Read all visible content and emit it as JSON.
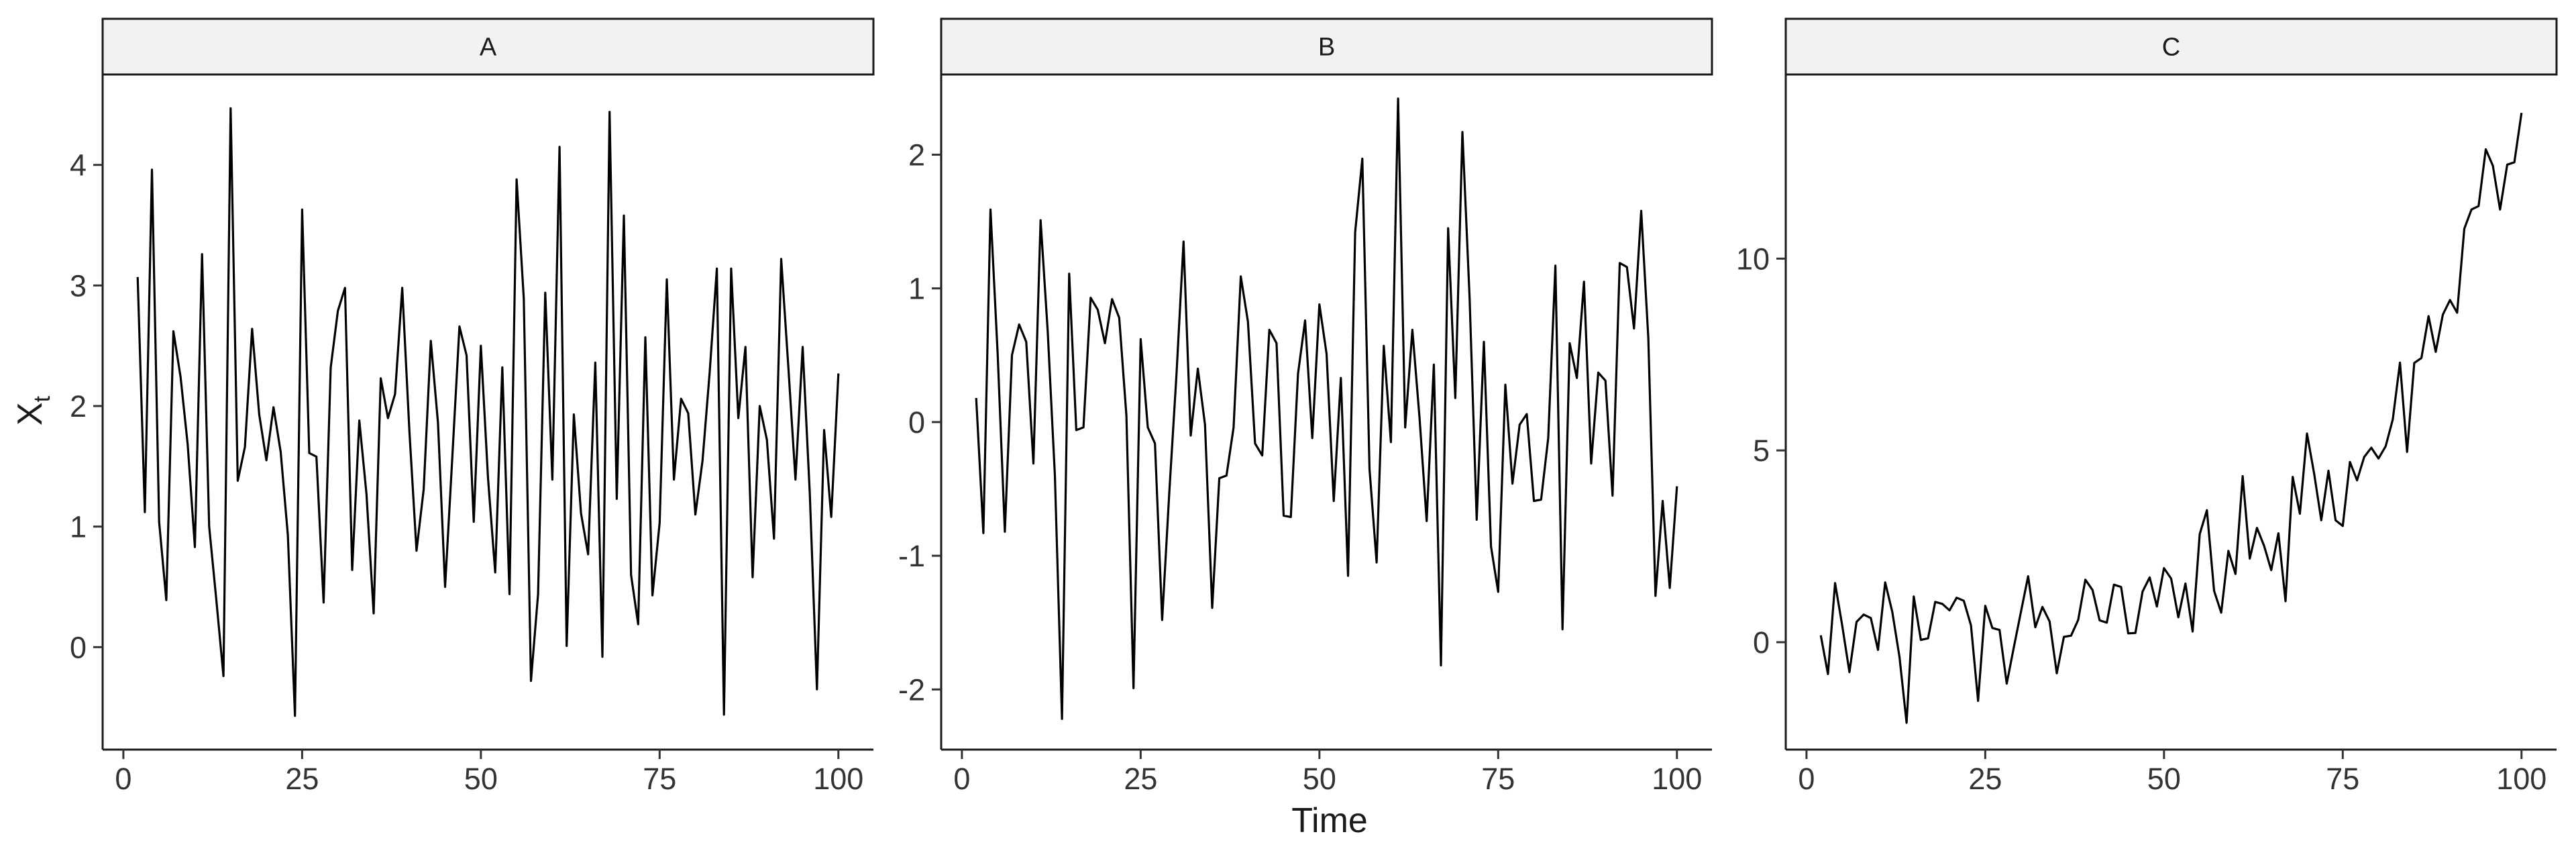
{
  "chart_data": {
    "type": "line",
    "layout": "facet",
    "xlabel": "Time",
    "ylabel_main": "X",
    "ylabel_sub": "t",
    "line_color": "#000000",
    "strip_fill": "#f2f2f2",
    "panels": [
      {
        "name": "A",
        "xlim": [
          -2.9,
          104.9
        ],
        "ylim": [
          -0.85,
          4.75
        ],
        "xticks": [
          0,
          25,
          50,
          75,
          100
        ],
        "yticks": [
          0,
          1,
          2,
          3,
          4
        ],
        "ytick_labels": [
          "0",
          "1",
          "2",
          "3",
          "4"
        ],
        "x": [
          2,
          3,
          4,
          5,
          6,
          7,
          8,
          9,
          10,
          11,
          12,
          13,
          14,
          15,
          16,
          17,
          18,
          19,
          20,
          21,
          22,
          23,
          24,
          25,
          26,
          27,
          28,
          29,
          30,
          31,
          32,
          33,
          34,
          35,
          36,
          37,
          38,
          39,
          40,
          41,
          42,
          43,
          44,
          45,
          46,
          47,
          48,
          49,
          50,
          51,
          52,
          53,
          54,
          55,
          56,
          57,
          58,
          59,
          60,
          61,
          62,
          63,
          64,
          65,
          66,
          67,
          68,
          69,
          70,
          71,
          72,
          73,
          74,
          75,
          76,
          77,
          78,
          79,
          80,
          81,
          82,
          83,
          84,
          85,
          86,
          87,
          88,
          89,
          90,
          91,
          92,
          93,
          94,
          95,
          96,
          97,
          98,
          99,
          100
        ],
        "y": [
          3.07,
          1.12,
          3.96,
          1.04,
          0.39,
          2.62,
          2.24,
          1.68,
          0.83,
          3.26,
          1.0,
          0.39,
          -0.24,
          4.47,
          1.38,
          1.66,
          2.64,
          1.93,
          1.55,
          1.99,
          1.62,
          0.93,
          -0.57,
          3.63,
          1.61,
          1.58,
          0.37,
          2.32,
          2.79,
          2.98,
          0.64,
          1.88,
          1.27,
          0.28,
          2.23,
          1.9,
          2.1,
          2.98,
          1.79,
          0.8,
          1.31,
          2.54,
          1.86,
          0.5,
          1.57,
          2.66,
          2.42,
          1.04,
          2.5,
          1.4,
          0.62,
          2.32,
          0.44,
          3.88,
          2.89,
          -0.28,
          0.44,
          2.94,
          1.39,
          4.15,
          0.01,
          1.93,
          1.11,
          0.77,
          2.36,
          -0.08,
          4.44,
          1.23,
          3.58,
          0.6,
          0.19,
          2.57,
          0.43,
          1.03,
          3.05,
          1.39,
          2.06,
          1.94,
          1.1,
          1.55,
          2.28,
          3.14,
          -0.56,
          3.14,
          1.9,
          2.49,
          0.58,
          2.0,
          1.72,
          0.9,
          3.22,
          2.32,
          1.39,
          2.49,
          1.28,
          -0.35,
          1.8,
          1.08,
          2.27
        ]
      },
      {
        "name": "B",
        "xlim": [
          -2.9,
          104.9
        ],
        "ylim": [
          -2.45,
          2.6
        ],
        "xticks": [
          0,
          25,
          50,
          75,
          100
        ],
        "yticks": [
          -2,
          -1,
          0,
          1,
          2
        ],
        "ytick_labels": [
          "-2",
          "-1",
          "0",
          "1",
          "2"
        ],
        "x": [
          2,
          3,
          4,
          5,
          6,
          7,
          8,
          9,
          10,
          11,
          12,
          13,
          14,
          15,
          16,
          17,
          18,
          19,
          20,
          21,
          22,
          23,
          24,
          25,
          26,
          27,
          28,
          29,
          30,
          31,
          32,
          33,
          34,
          35,
          36,
          37,
          38,
          39,
          40,
          41,
          42,
          43,
          44,
          45,
          46,
          47,
          48,
          49,
          50,
          51,
          52,
          53,
          54,
          55,
          56,
          57,
          58,
          59,
          60,
          61,
          62,
          63,
          64,
          65,
          66,
          67,
          68,
          69,
          70,
          71,
          72,
          73,
          74,
          75,
          76,
          77,
          78,
          79,
          80,
          81,
          82,
          83,
          84,
          85,
          86,
          87,
          88,
          89,
          90,
          91,
          92,
          93,
          94,
          95,
          96,
          97,
          98,
          99,
          100
        ],
        "y": [
          0.18,
          -0.83,
          1.59,
          0.51,
          -0.82,
          0.5,
          0.73,
          0.6,
          -0.31,
          1.51,
          0.68,
          -0.4,
          -2.22,
          1.11,
          -0.06,
          -0.04,
          0.93,
          0.84,
          0.59,
          0.92,
          0.78,
          0.05,
          -1.99,
          0.62,
          -0.04,
          -0.16,
          -1.48,
          -0.53,
          0.35,
          1.35,
          -0.1,
          0.4,
          -0.02,
          -1.39,
          -0.42,
          -0.4,
          -0.04,
          1.09,
          0.75,
          -0.16,
          -0.25,
          0.69,
          0.59,
          -0.7,
          -0.71,
          0.36,
          0.76,
          -0.12,
          0.88,
          0.51,
          -0.59,
          0.33,
          -1.15,
          1.42,
          1.97,
          -0.35,
          -1.05,
          0.57,
          -0.15,
          2.42,
          -0.04,
          0.69,
          0.03,
          -0.74,
          0.43,
          -1.82,
          1.45,
          0.18,
          2.17,
          0.93,
          -0.73,
          0.6,
          -0.93,
          -1.27,
          0.28,
          -0.46,
          -0.02,
          0.06,
          -0.59,
          -0.58,
          -0.12,
          1.17,
          -1.55,
          0.59,
          0.33,
          1.05,
          -0.31,
          0.37,
          0.31,
          -0.55,
          1.19,
          1.16,
          0.7,
          1.58,
          0.63,
          -1.3,
          -0.59,
          -1.24,
          -0.48
        ]
      },
      {
        "name": "C",
        "xlim": [
          -2.9,
          104.9
        ],
        "ylim": [
          -2.8,
          14.8
        ],
        "xticks": [
          0,
          25,
          50,
          75,
          100
        ],
        "yticks": [
          0,
          5,
          10
        ],
        "ytick_labels": [
          "0",
          "5",
          "10"
        ],
        "x": [
          2,
          3,
          4,
          5,
          6,
          7,
          8,
          9,
          10,
          11,
          12,
          13,
          14,
          15,
          16,
          17,
          18,
          19,
          20,
          21,
          22,
          23,
          24,
          25,
          26,
          27,
          28,
          29,
          30,
          31,
          32,
          33,
          34,
          35,
          36,
          37,
          38,
          39,
          40,
          41,
          42,
          43,
          44,
          45,
          46,
          47,
          48,
          49,
          50,
          51,
          52,
          53,
          54,
          55,
          56,
          57,
          58,
          59,
          60,
          61,
          62,
          63,
          64,
          65,
          66,
          67,
          68,
          69,
          70,
          71,
          72,
          73,
          74,
          75,
          76,
          77,
          78,
          79,
          80,
          81,
          82,
          83,
          84,
          85,
          86,
          87,
          88,
          89,
          90,
          91,
          92,
          93,
          94,
          95,
          96,
          97,
          98,
          99,
          100
        ],
        "y": [
          0.18,
          -0.83,
          1.54,
          0.43,
          -0.78,
          0.53,
          0.72,
          0.63,
          -0.2,
          1.56,
          0.79,
          -0.38,
          -2.1,
          1.19,
          0.06,
          0.1,
          1.05,
          1.0,
          0.83,
          1.16,
          1.08,
          0.44,
          -1.53,
          0.95,
          0.37,
          0.32,
          -1.08,
          -0.13,
          0.8,
          1.72,
          0.39,
          0.92,
          0.54,
          -0.81,
          0.14,
          0.17,
          0.58,
          1.63,
          1.36,
          0.57,
          0.51,
          1.5,
          1.44,
          0.23,
          0.24,
          1.32,
          1.69,
          0.93,
          1.93,
          1.66,
          0.65,
          1.53,
          0.28,
          2.82,
          3.44,
          1.34,
          0.77,
          2.38,
          1.78,
          4.33,
          2.18,
          2.98,
          2.51,
          1.88,
          2.84,
          1.07,
          4.31,
          3.35,
          5.44,
          4.39,
          3.18,
          4.47,
          3.18,
          3.03,
          4.7,
          4.22,
          4.83,
          5.07,
          4.79,
          5.11,
          5.81,
          7.29,
          4.96,
          7.28,
          7.41,
          8.5,
          7.57,
          8.54,
          8.92,
          8.59,
          10.78,
          11.28,
          11.37,
          12.85,
          12.42,
          11.28,
          12.45,
          12.51,
          13.8
        ]
      }
    ]
  }
}
